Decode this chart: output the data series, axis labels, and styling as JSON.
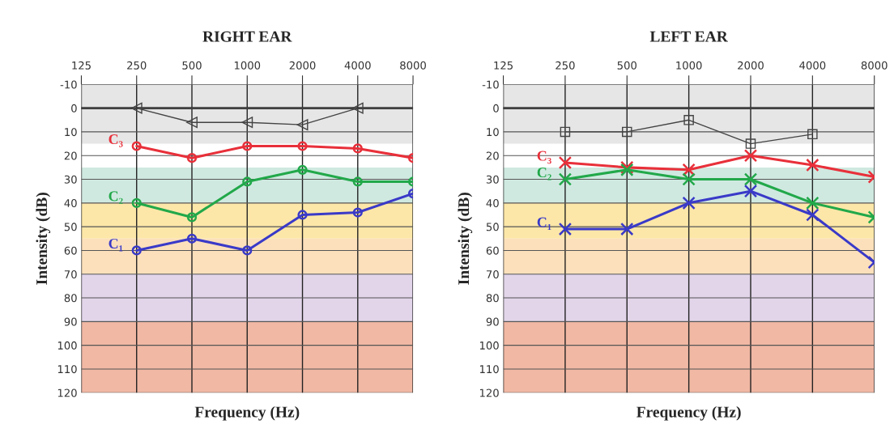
{
  "chart_data": [
    {
      "type": "line",
      "title": "RIGHT EAR",
      "xlabel": "Frequency (Hz)",
      "ylabel": "Intensity (dB)",
      "categories": [
        "125",
        "250",
        "500",
        "1000",
        "2000",
        "4000",
        "8000"
      ],
      "ylim": [
        120,
        -10
      ],
      "yticks": [
        -10,
        0,
        10,
        20,
        30,
        40,
        50,
        60,
        70,
        80,
        90,
        100,
        110,
        120
      ],
      "grid": true,
      "series": [
        {
          "color": "#444444",
          "marker": "triangle",
          "values": [
            null,
            0,
            6,
            6,
            7,
            0,
            null
          ]
        },
        {
          "name": "C₃",
          "color": "#e8303a",
          "marker": "circle",
          "values": [
            null,
            16,
            21,
            16,
            16,
            17,
            21
          ]
        },
        {
          "name": "C₂",
          "color": "#22a84a",
          "marker": "circle",
          "values": [
            null,
            40,
            46,
            31,
            26,
            31,
            31
          ]
        },
        {
          "name": "C₁",
          "color": "#3a3ac8",
          "marker": "circle",
          "values": [
            null,
            60,
            55,
            60,
            45,
            44,
            36
          ]
        }
      ],
      "ref_lines": [
        {
          "axis": "y",
          "value": 0,
          "color": "#222222"
        }
      ],
      "bands": [
        {
          "axis": "y",
          "from": -10,
          "to": 15,
          "color": "#e6e6e6"
        },
        {
          "axis": "y",
          "from": 25,
          "to": 40,
          "color": "#cfe9e0"
        },
        {
          "axis": "y",
          "from": 40,
          "to": 55,
          "color": "#fde7a8"
        },
        {
          "axis": "y",
          "from": 55,
          "to": 70,
          "color": "#fce0bb"
        },
        {
          "axis": "y",
          "from": 70,
          "to": 90,
          "color": "#e2d5ea"
        },
        {
          "axis": "y",
          "from": 90,
          "to": 120,
          "color": "#f1b8a4"
        }
      ]
    },
    {
      "type": "line",
      "title": "LEFT EAR",
      "xlabel": "Frequency (Hz)",
      "ylabel": "Intensity (dB)",
      "categories": [
        "125",
        "250",
        "500",
        "1000",
        "2000",
        "4000",
        "8000"
      ],
      "ylim": [
        120,
        -10
      ],
      "yticks": [
        -10,
        0,
        10,
        20,
        30,
        40,
        50,
        60,
        70,
        80,
        90,
        100,
        110,
        120
      ],
      "grid": true,
      "series": [
        {
          "color": "#444444",
          "marker": "square",
          "values": [
            null,
            10,
            10,
            5,
            15,
            11,
            null
          ]
        },
        {
          "name": "C₃",
          "color": "#e8303a",
          "marker": "cross",
          "values": [
            null,
            23,
            25,
            26,
            20,
            24,
            29
          ]
        },
        {
          "name": "C₂",
          "color": "#22a84a",
          "marker": "cross",
          "values": [
            null,
            30,
            26,
            30,
            30,
            40,
            46
          ]
        },
        {
          "name": "C₁",
          "color": "#3a3ac8",
          "marker": "cross",
          "values": [
            null,
            51,
            51,
            40,
            35,
            45,
            65
          ]
        }
      ],
      "ref_lines": [
        {
          "axis": "y",
          "value": 0,
          "color": "#222222"
        }
      ],
      "bands": [
        {
          "axis": "y",
          "from": -10,
          "to": 15,
          "color": "#e6e6e6"
        },
        {
          "axis": "y",
          "from": 25,
          "to": 40,
          "color": "#cfe9e0"
        },
        {
          "axis": "y",
          "from": 40,
          "to": 55,
          "color": "#fde7a8"
        },
        {
          "axis": "y",
          "from": 55,
          "to": 70,
          "color": "#fce0bb"
        },
        {
          "axis": "y",
          "from": 70,
          "to": 90,
          "color": "#e2d5ea"
        },
        {
          "axis": "y",
          "from": 90,
          "to": 120,
          "color": "#f1b8a4"
        }
      ]
    }
  ]
}
